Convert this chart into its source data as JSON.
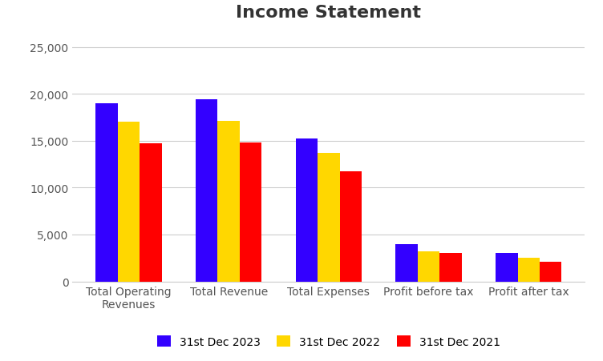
{
  "title": "Income Statement",
  "categories": [
    "Total Operating\nRevenues",
    "Total Revenue",
    "Total Expenses",
    "Profit before tax",
    "Profit after tax"
  ],
  "series": [
    {
      "label": "31st Dec 2023",
      "color": "#3300FF",
      "values": [
        19000,
        19400,
        15200,
        4000,
        3000
      ]
    },
    {
      "label": "31st Dec 2022",
      "color": "#FFD700",
      "values": [
        17000,
        17100,
        13700,
        3200,
        2500
      ]
    },
    {
      "label": "31st Dec 2021",
      "color": "#FF0000",
      "values": [
        14700,
        14800,
        11700,
        3000,
        2100
      ]
    }
  ],
  "ylim": [
    0,
    27000
  ],
  "yticks": [
    0,
    5000,
    10000,
    15000,
    20000,
    25000
  ],
  "ytick_labels": [
    "0",
    "5,000",
    "10,000",
    "15,000",
    "20,000",
    "25,000"
  ],
  "bar_width": 0.22,
  "title_fontsize": 16,
  "tick_fontsize": 10,
  "legend_fontsize": 10,
  "background_color": "#FFFFFF",
  "grid_color": "#CCCCCC",
  "title_color": "#333333",
  "tick_label_color": "#555555",
  "figsize": [
    7.52,
    4.52
  ],
  "dpi": 100
}
